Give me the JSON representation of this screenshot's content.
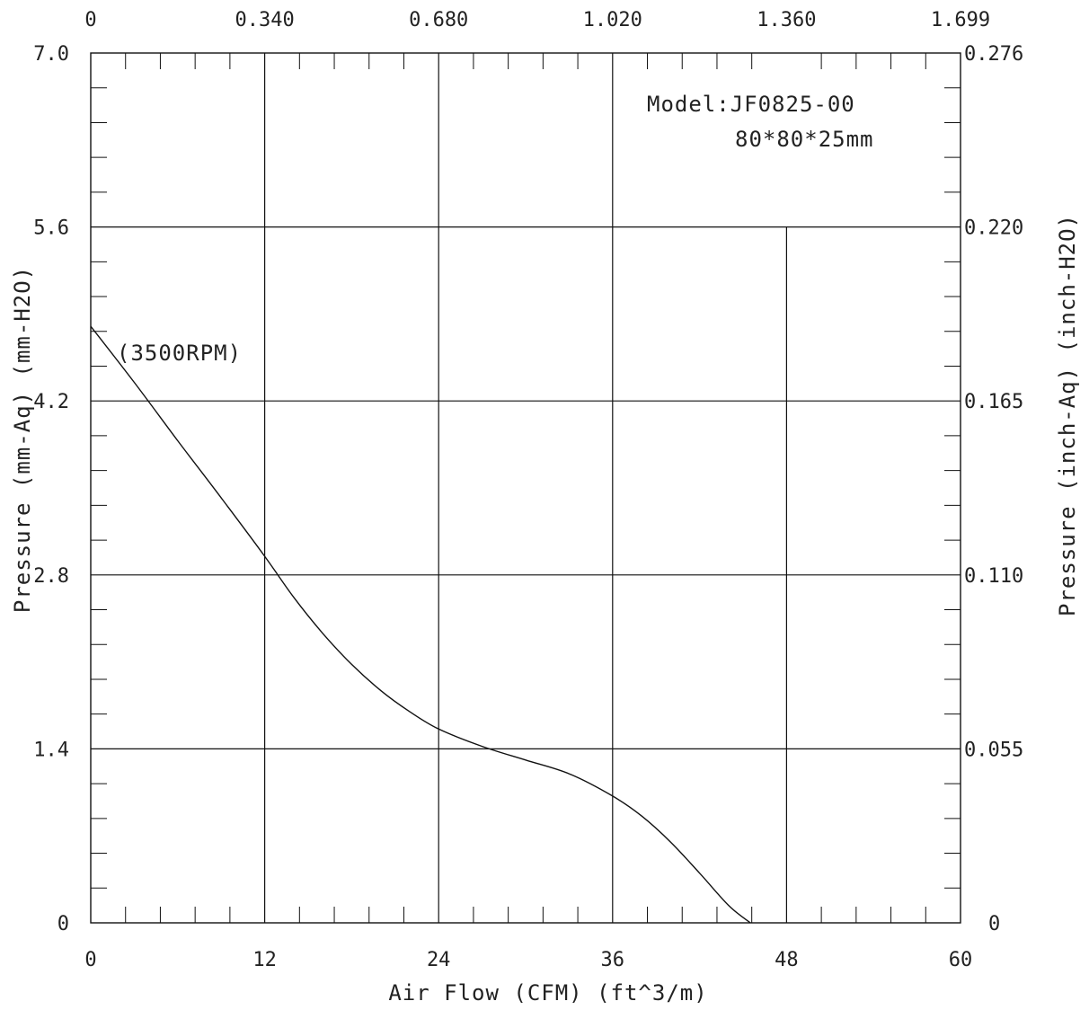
{
  "chart_data": {
    "type": "line",
    "title": "",
    "xlabel": "Air Flow (CFM) (ft^3/m)",
    "ylabel_left": "Pressure (mm-Aq) (mm-H2O)",
    "ylabel_right": "Pressure (inch-Aq) (inch-H2O)",
    "xlim": [
      0,
      60
    ],
    "ylim": [
      0,
      7.0
    ],
    "x_ticks": [
      "0",
      "12",
      "24",
      "36",
      "48",
      "60"
    ],
    "x_top_ticks": [
      "0",
      "0.340",
      "0.680",
      "1.020",
      "1.360",
      "1.699"
    ],
    "y_left_ticks": [
      "0",
      "1.4",
      "2.8",
      "4.2",
      "5.6",
      "7.0"
    ],
    "y_right_ticks": [
      "0",
      "0.055",
      "0.110",
      "0.165",
      "0.220",
      "0.276"
    ],
    "grid": true,
    "annotations": {
      "model": "Model:JF0825-00",
      "size": "80*80*25mm",
      "rpm": "(3500RPM)"
    },
    "series": [
      {
        "x": [
          0,
          3,
          6,
          9,
          12,
          14,
          16,
          18,
          20,
          22,
          24,
          27,
          30,
          33,
          36,
          38,
          40,
          42,
          44,
          45.5
        ],
        "y": [
          4.8,
          4.35,
          3.88,
          3.42,
          2.95,
          2.62,
          2.33,
          2.08,
          1.87,
          1.7,
          1.56,
          1.42,
          1.31,
          1.2,
          1.02,
          0.86,
          0.65,
          0.4,
          0.14,
          0
        ]
      }
    ]
  },
  "colors": {
    "line": "#111111",
    "grid": "#111111",
    "text": "#222222",
    "background": "#ffffff"
  }
}
